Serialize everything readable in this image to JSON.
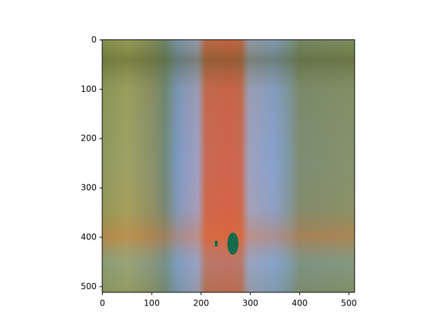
{
  "chart_data": {
    "type": "image",
    "xlim": [
      -0.5,
      511.5
    ],
    "ylim": [
      511.5,
      -0.5
    ],
    "xticks": [
      0,
      100,
      200,
      300,
      400,
      500
    ],
    "yticks": [
      0,
      100,
      200,
      300,
      400,
      500
    ]
  }
}
